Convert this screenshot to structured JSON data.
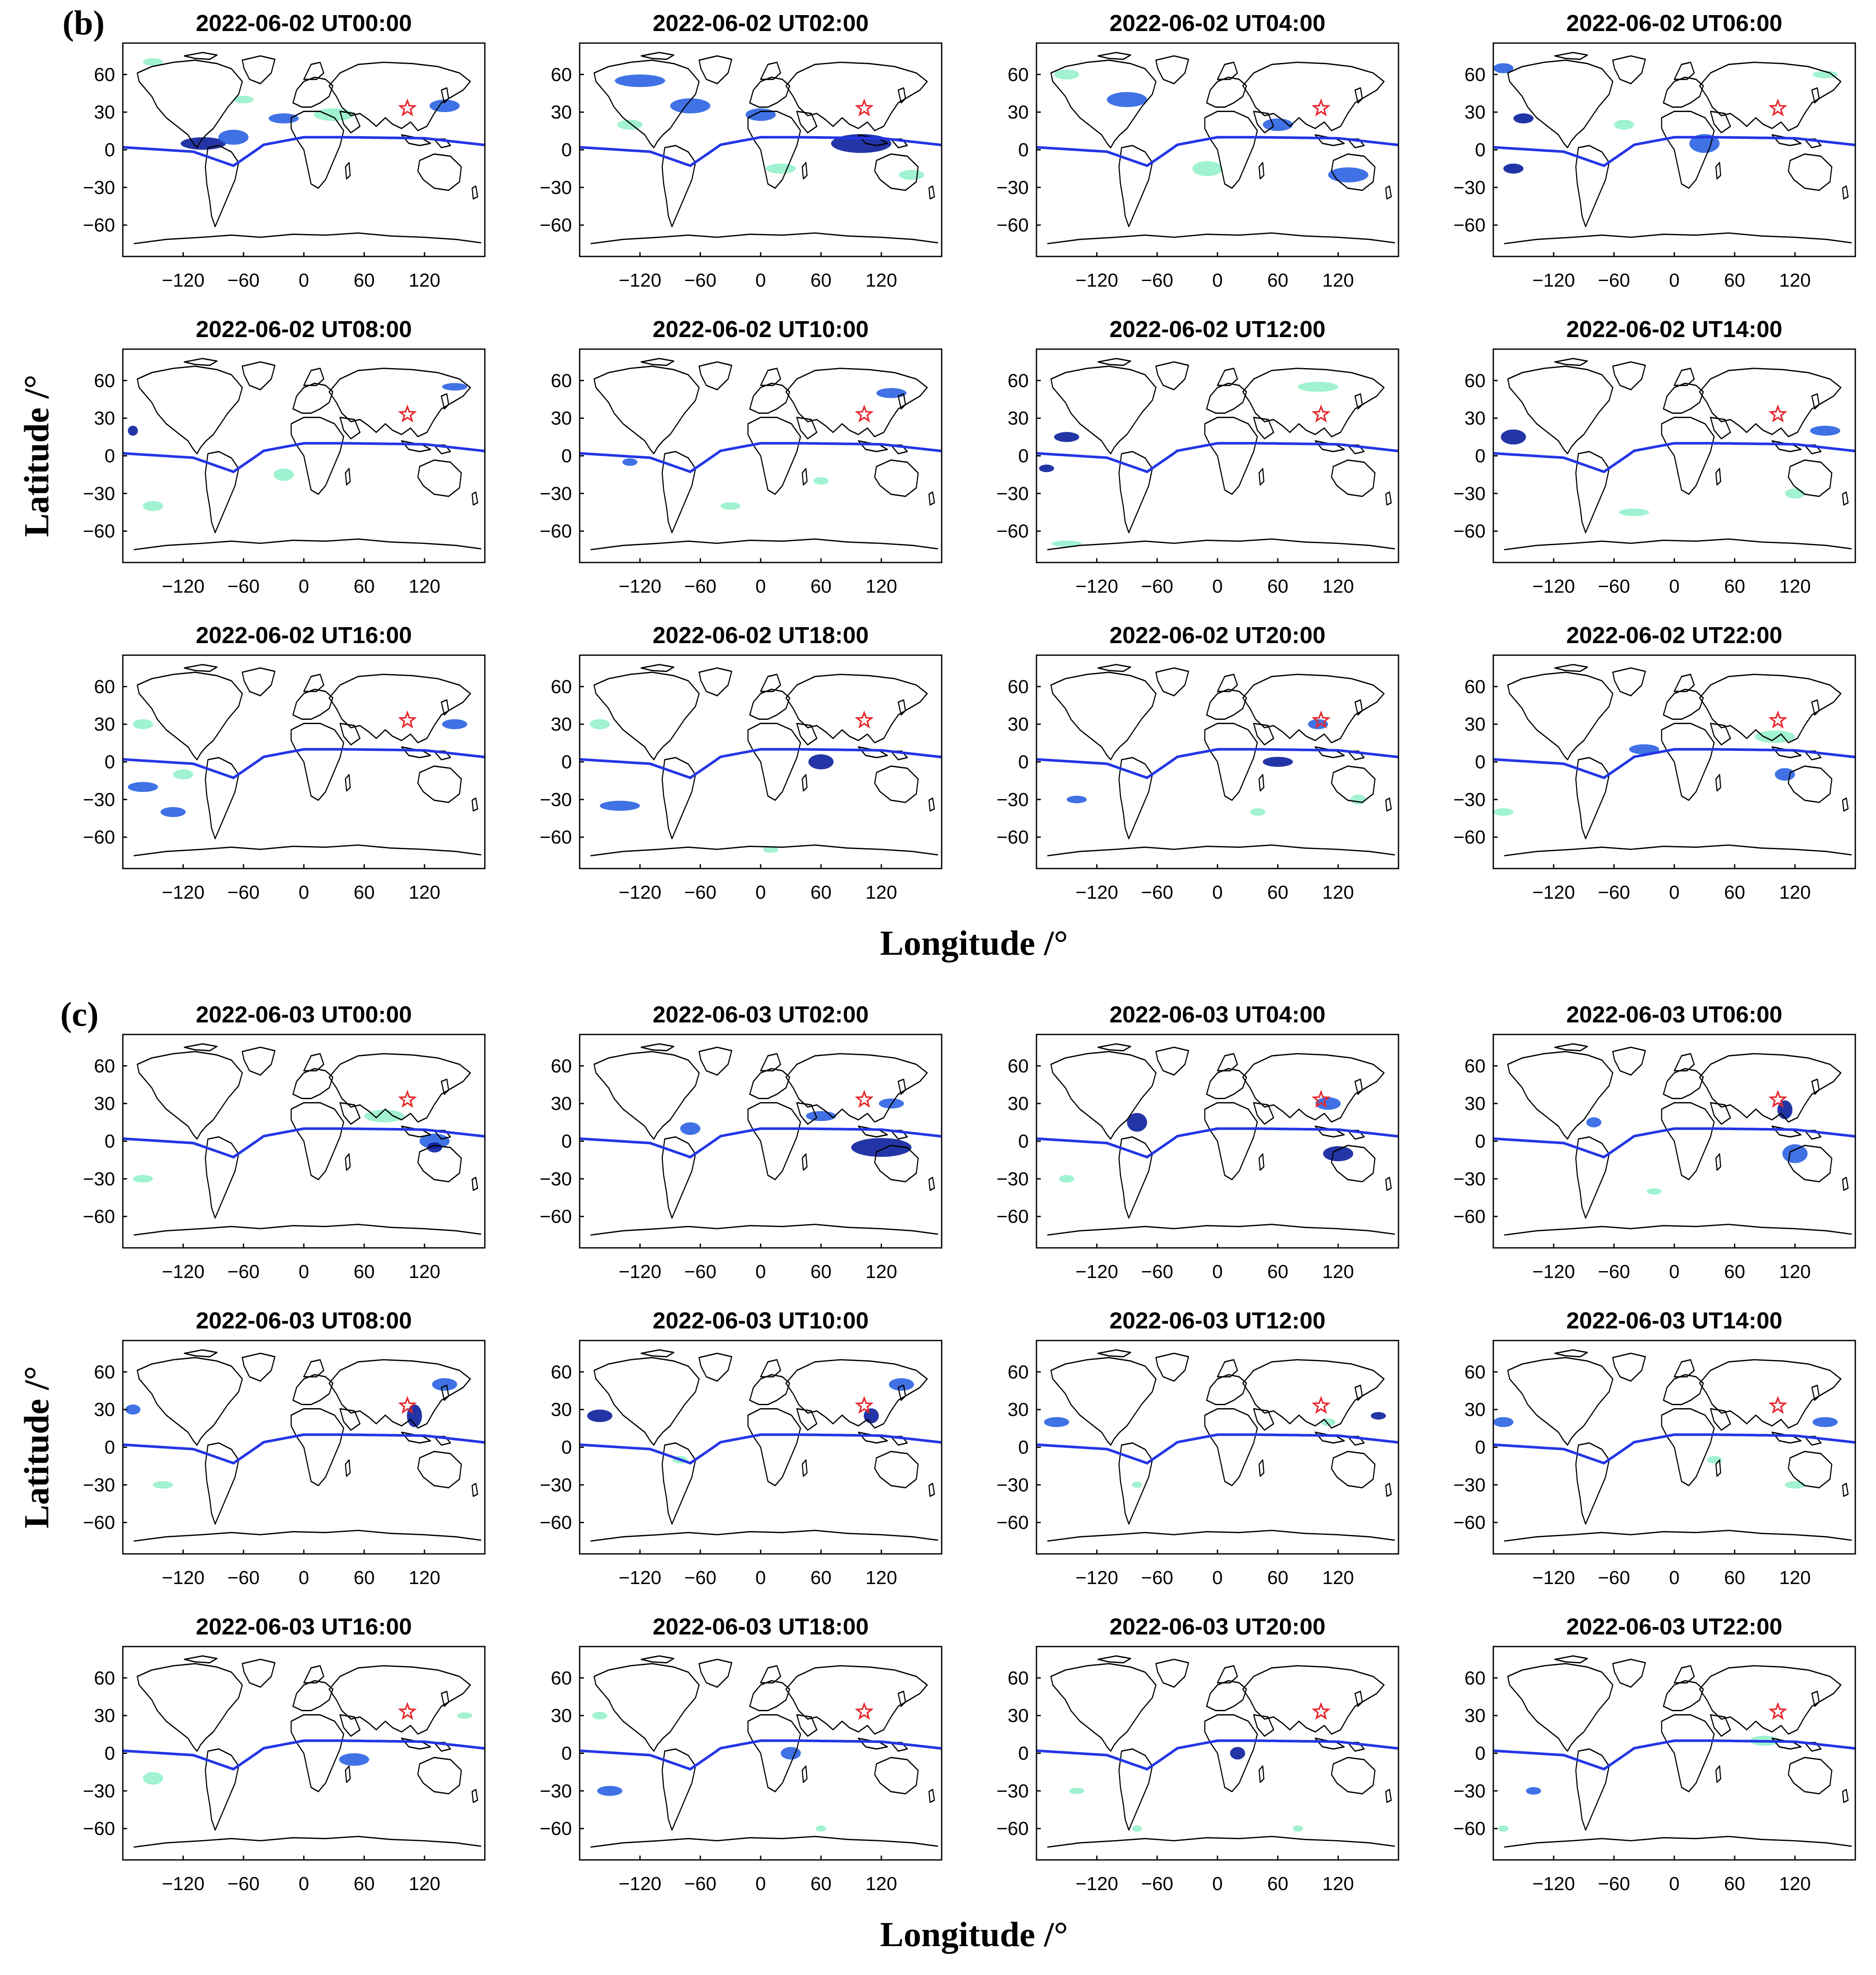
{
  "chart_data": {
    "type": "heatmap",
    "panel_kind": "world map grid",
    "colors": {
      "light": "#8ff0c8",
      "mid": "#2b63e3",
      "dark": "#0b1f9c",
      "equator": "#2336e6",
      "star": "#e8262b"
    },
    "axes": {
      "x_ticks": [
        "−120",
        "−60",
        "0",
        "60",
        "120"
      ],
      "x_values": [
        -120,
        -60,
        0,
        60,
        120
      ],
      "y_ticks": [
        "60",
        "30",
        "0",
        "−30",
        "−60"
      ],
      "y_values": [
        60,
        30,
        0,
        -30,
        -60
      ],
      "xlim": [
        -180,
        180
      ],
      "ylim": [
        -85,
        85
      ]
    },
    "star_marker": {
      "lon": 103,
      "lat": 33
    },
    "sections": [
      {
        "label": "(b)",
        "ylabel": "Latitude /°",
        "xlabel": "Longitude /°",
        "panels": [
          {
            "title": "2022-06-02 UT00:00",
            "blobs": [
              [
                -100,
                5,
                45,
                10,
                "dark"
              ],
              [
                -70,
                10,
                30,
                12,
                "mid"
              ],
              [
                -20,
                25,
                30,
                8,
                "mid"
              ],
              [
                30,
                28,
                40,
                10,
                "light"
              ],
              [
                140,
                35,
                30,
                10,
                "mid"
              ],
              [
                -150,
                70,
                20,
                6,
                "light"
              ],
              [
                -60,
                40,
                20,
                6,
                "light"
              ]
            ]
          },
          {
            "title": "2022-06-02 UT02:00",
            "blobs": [
              [
                -120,
                55,
                50,
                10,
                "mid"
              ],
              [
                -70,
                35,
                40,
                12,
                "mid"
              ],
              [
                0,
                28,
                30,
                10,
                "mid"
              ],
              [
                100,
                5,
                60,
                15,
                "dark"
              ],
              [
                20,
                -15,
                30,
                8,
                "light"
              ],
              [
                -130,
                20,
                25,
                8,
                "light"
              ],
              [
                150,
                -20,
                25,
                8,
                "light"
              ]
            ]
          },
          {
            "title": "2022-06-02 UT04:00",
            "blobs": [
              [
                -90,
                40,
                40,
                12,
                "mid"
              ],
              [
                60,
                20,
                30,
                10,
                "mid"
              ],
              [
                130,
                -20,
                40,
                12,
                "mid"
              ],
              [
                -10,
                -15,
                30,
                12,
                "light"
              ],
              [
                -150,
                60,
                25,
                8,
                "light"
              ]
            ]
          },
          {
            "title": "2022-06-02 UT06:00",
            "blobs": [
              [
                -150,
                25,
                20,
                8,
                "dark"
              ],
              [
                -160,
                -15,
                20,
                8,
                "dark"
              ],
              [
                30,
                5,
                30,
                15,
                "mid"
              ],
              [
                -170,
                65,
                20,
                8,
                "mid"
              ],
              [
                150,
                60,
                25,
                6,
                "light"
              ],
              [
                -50,
                20,
                20,
                8,
                "light"
              ]
            ]
          },
          {
            "title": "2022-06-02 UT08:00",
            "blobs": [
              [
                -170,
                20,
                10,
                8,
                "dark"
              ],
              [
                150,
                55,
                25,
                6,
                "mid"
              ],
              [
                -20,
                -15,
                20,
                10,
                "light"
              ],
              [
                -150,
                -40,
                20,
                8,
                "light"
              ]
            ]
          },
          {
            "title": "2022-06-02 UT10:00",
            "blobs": [
              [
                130,
                50,
                30,
                8,
                "mid"
              ],
              [
                -130,
                -5,
                15,
                6,
                "mid"
              ],
              [
                -30,
                -40,
                20,
                6,
                "light"
              ],
              [
                60,
                -20,
                15,
                6,
                "light"
              ]
            ]
          },
          {
            "title": "2022-06-02 UT12:00",
            "blobs": [
              [
                -150,
                15,
                25,
                8,
                "dark"
              ],
              [
                100,
                55,
                40,
                8,
                "light"
              ],
              [
                -170,
                -10,
                15,
                6,
                "dark"
              ],
              [
                -150,
                -70,
                30,
                5,
                "light"
              ]
            ]
          },
          {
            "title": "2022-06-02 UT14:00",
            "blobs": [
              [
                -160,
                15,
                25,
                12,
                "dark"
              ],
              [
                150,
                20,
                30,
                8,
                "mid"
              ],
              [
                -40,
                -45,
                30,
                6,
                "light"
              ],
              [
                120,
                -30,
                20,
                8,
                "light"
              ]
            ]
          },
          {
            "title": "2022-06-02 UT16:00",
            "blobs": [
              [
                -160,
                -20,
                30,
                8,
                "mid"
              ],
              [
                -130,
                -40,
                25,
                8,
                "mid"
              ],
              [
                150,
                30,
                25,
                8,
                "mid"
              ],
              [
                -160,
                30,
                20,
                8,
                "light"
              ],
              [
                -120,
                -10,
                20,
                8,
                "light"
              ]
            ]
          },
          {
            "title": "2022-06-02 UT18:00",
            "blobs": [
              [
                -140,
                -35,
                40,
                8,
                "mid"
              ],
              [
                60,
                0,
                25,
                12,
                "dark"
              ],
              [
                -160,
                30,
                20,
                8,
                "light"
              ],
              [
                10,
                -70,
                15,
                5,
                "light"
              ]
            ]
          },
          {
            "title": "2022-06-02 UT20:00",
            "blobs": [
              [
                60,
                0,
                30,
                8,
                "dark"
              ],
              [
                100,
                30,
                20,
                8,
                "mid"
              ],
              [
                -140,
                -30,
                20,
                6,
                "mid"
              ],
              [
                40,
                -40,
                15,
                6,
                "light"
              ],
              [
                140,
                -30,
                15,
                8,
                "light"
              ]
            ]
          },
          {
            "title": "2022-06-02 UT22:00",
            "blobs": [
              [
                -30,
                10,
                30,
                8,
                "mid"
              ],
              [
                100,
                20,
                40,
                10,
                "light"
              ],
              [
                110,
                -10,
                20,
                10,
                "mid"
              ],
              [
                -170,
                -40,
                20,
                6,
                "light"
              ]
            ]
          }
        ]
      },
      {
        "label": "(c)",
        "ylabel": "Latitude /°",
        "xlabel": "Longitude /°",
        "panels": [
          {
            "title": "2022-06-03 UT00:00",
            "blobs": [
              [
                80,
                20,
                40,
                10,
                "light"
              ],
              [
                130,
                0,
                30,
                12,
                "mid"
              ],
              [
                130,
                -5,
                15,
                8,
                "dark"
              ],
              [
                -160,
                -30,
                20,
                6,
                "light"
              ]
            ]
          },
          {
            "title": "2022-06-03 UT02:00",
            "blobs": [
              [
                120,
                -5,
                60,
                15,
                "dark"
              ],
              [
                60,
                20,
                30,
                8,
                "mid"
              ],
              [
                130,
                30,
                25,
                8,
                "mid"
              ],
              [
                -70,
                10,
                20,
                10,
                "mid"
              ]
            ]
          },
          {
            "title": "2022-06-03 UT04:00",
            "blobs": [
              [
                -80,
                15,
                20,
                15,
                "dark"
              ],
              [
                120,
                -10,
                30,
                12,
                "dark"
              ],
              [
                110,
                30,
                25,
                10,
                "mid"
              ],
              [
                -150,
                -30,
                15,
                6,
                "light"
              ]
            ]
          },
          {
            "title": "2022-06-03 UT06:00",
            "blobs": [
              [
                110,
                25,
                15,
                15,
                "dark"
              ],
              [
                120,
                -10,
                25,
                15,
                "mid"
              ],
              [
                -80,
                15,
                15,
                8,
                "mid"
              ],
              [
                -20,
                -40,
                15,
                5,
                "light"
              ]
            ]
          },
          {
            "title": "2022-06-03 UT08:00",
            "blobs": [
              [
                110,
                25,
                15,
                18,
                "dark"
              ],
              [
                140,
                50,
                25,
                10,
                "mid"
              ],
              [
                -170,
                30,
                15,
                8,
                "mid"
              ],
              [
                -140,
                -30,
                20,
                6,
                "light"
              ]
            ]
          },
          {
            "title": "2022-06-03 UT10:00",
            "blobs": [
              [
                110,
                25,
                15,
                12,
                "dark"
              ],
              [
                140,
                50,
                25,
                10,
                "mid"
              ],
              [
                -160,
                25,
                25,
                10,
                "dark"
              ],
              [
                -80,
                -10,
                15,
                6,
                "light"
              ]
            ]
          },
          {
            "title": "2022-06-03 UT12:00",
            "blobs": [
              [
                -160,
                20,
                25,
                8,
                "mid"
              ],
              [
                -80,
                -30,
                10,
                5,
                "light"
              ],
              [
                160,
                25,
                15,
                6,
                "dark"
              ],
              [
                110,
                20,
                15,
                6,
                "light"
              ]
            ]
          },
          {
            "title": "2022-06-03 UT14:00",
            "blobs": [
              [
                -170,
                20,
                20,
                8,
                "mid"
              ],
              [
                150,
                20,
                25,
                8,
                "mid"
              ],
              [
                40,
                -10,
                15,
                6,
                "light"
              ],
              [
                120,
                -30,
                20,
                6,
                "light"
              ]
            ]
          },
          {
            "title": "2022-06-03 UT16:00",
            "blobs": [
              [
                50,
                -5,
                30,
                10,
                "mid"
              ],
              [
                -150,
                -20,
                20,
                10,
                "light"
              ],
              [
                160,
                30,
                15,
                5,
                "light"
              ]
            ]
          },
          {
            "title": "2022-06-03 UT18:00",
            "blobs": [
              [
                -150,
                -30,
                25,
                8,
                "mid"
              ],
              [
                30,
                0,
                20,
                10,
                "mid"
              ],
              [
                -160,
                30,
                15,
                6,
                "light"
              ],
              [
                60,
                -60,
                10,
                5,
                "light"
              ]
            ]
          },
          {
            "title": "2022-06-03 UT20:00",
            "blobs": [
              [
                20,
                0,
                15,
                10,
                "dark"
              ],
              [
                -140,
                -30,
                15,
                5,
                "light"
              ],
              [
                80,
                -60,
                10,
                5,
                "light"
              ],
              [
                -80,
                -60,
                10,
                5,
                "light"
              ]
            ]
          },
          {
            "title": "2022-06-03 UT22:00",
            "blobs": [
              [
                -140,
                -30,
                15,
                6,
                "mid"
              ],
              [
                90,
                10,
                30,
                8,
                "light"
              ],
              [
                -170,
                -60,
                10,
                5,
                "light"
              ]
            ]
          }
        ]
      }
    ]
  }
}
